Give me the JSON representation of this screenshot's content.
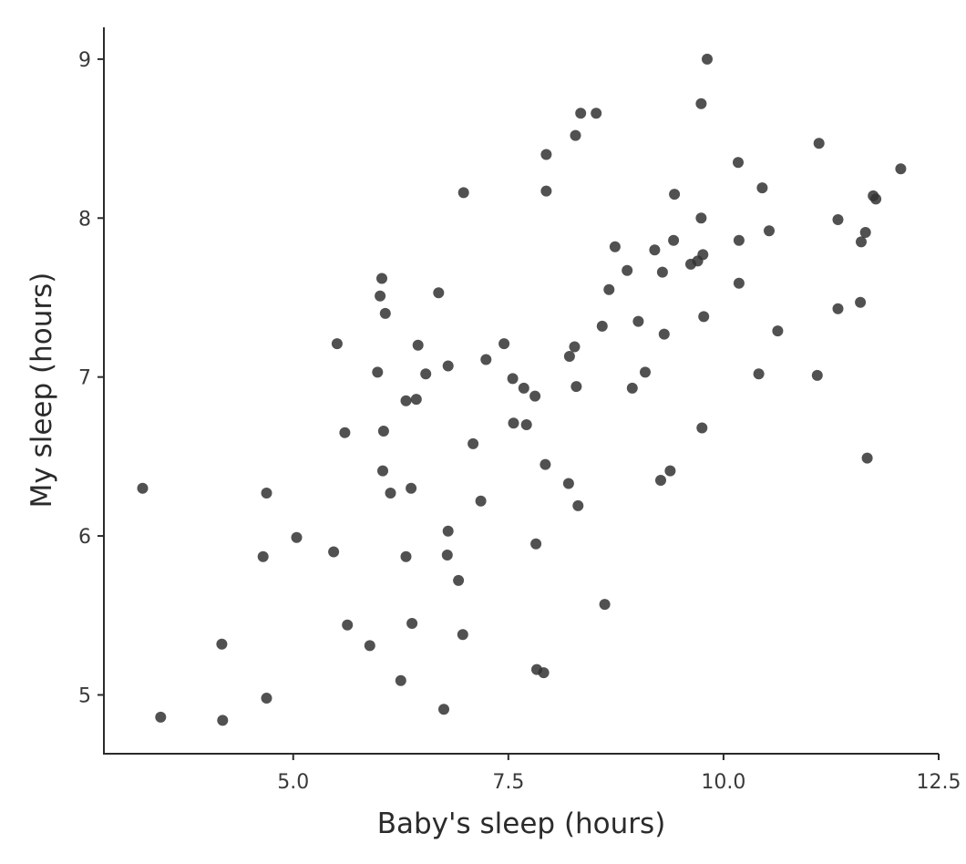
{
  "chart_data": {
    "type": "scatter",
    "title": "",
    "xlabel": "Baby's sleep (hours)",
    "ylabel": "My sleep (hours)",
    "xlim": [
      2.8,
      12.5
    ],
    "ylim": [
      4.63,
      9.2
    ],
    "xticks": [
      5.0,
      7.5,
      10.0,
      12.5
    ],
    "xtick_labels": [
      "5.0",
      "7.5",
      "10.0",
      "12.5"
    ],
    "yticks": [
      5,
      6,
      7,
      8,
      9
    ],
    "ytick_labels": [
      "5",
      "6",
      "7",
      "8",
      "9"
    ],
    "grid": false,
    "point_color": "#333333",
    "points": [
      [
        3.25,
        6.3
      ],
      [
        3.46,
        4.86
      ],
      [
        4.17,
        5.32
      ],
      [
        4.18,
        4.84
      ],
      [
        4.65,
        5.87
      ],
      [
        4.69,
        6.27
      ],
      [
        4.69,
        4.98
      ],
      [
        5.04,
        5.99
      ],
      [
        5.47,
        5.9
      ],
      [
        5.51,
        7.21
      ],
      [
        5.6,
        6.65
      ],
      [
        5.63,
        5.44
      ],
      [
        5.89,
        5.31
      ],
      [
        5.98,
        7.03
      ],
      [
        6.01,
        7.51
      ],
      [
        6.03,
        7.62
      ],
      [
        6.04,
        6.41
      ],
      [
        6.05,
        6.66
      ],
      [
        6.07,
        7.4
      ],
      [
        6.13,
        6.27
      ],
      [
        6.25,
        5.09
      ],
      [
        6.31,
        6.85
      ],
      [
        6.31,
        5.87
      ],
      [
        6.37,
        6.3
      ],
      [
        6.38,
        5.45
      ],
      [
        6.43,
        6.86
      ],
      [
        6.45,
        7.2
      ],
      [
        6.54,
        7.02
      ],
      [
        6.69,
        7.53
      ],
      [
        6.75,
        4.91
      ],
      [
        6.79,
        5.88
      ],
      [
        6.8,
        6.03
      ],
      [
        6.8,
        7.07
      ],
      [
        6.92,
        5.72
      ],
      [
        6.97,
        5.38
      ],
      [
        6.98,
        8.16
      ],
      [
        7.09,
        6.58
      ],
      [
        7.18,
        6.22
      ],
      [
        7.24,
        7.11
      ],
      [
        7.45,
        7.21
      ],
      [
        7.55,
        6.99
      ],
      [
        7.56,
        6.71
      ],
      [
        7.68,
        6.93
      ],
      [
        7.71,
        6.7
      ],
      [
        7.81,
        6.88
      ],
      [
        7.82,
        5.95
      ],
      [
        7.83,
        5.16
      ],
      [
        7.91,
        5.14
      ],
      [
        7.93,
        6.45
      ],
      [
        7.94,
        8.4
      ],
      [
        7.94,
        8.17
      ],
      [
        8.2,
        6.33
      ],
      [
        8.21,
        7.13
      ],
      [
        8.27,
        7.19
      ],
      [
        8.28,
        8.52
      ],
      [
        8.29,
        6.94
      ],
      [
        8.31,
        6.19
      ],
      [
        8.34,
        8.66
      ],
      [
        8.52,
        8.66
      ],
      [
        8.59,
        7.32
      ],
      [
        8.62,
        5.57
      ],
      [
        8.67,
        7.55
      ],
      [
        8.74,
        7.82
      ],
      [
        8.88,
        7.67
      ],
      [
        8.94,
        6.93
      ],
      [
        9.01,
        7.35
      ],
      [
        9.09,
        7.03
      ],
      [
        9.2,
        7.8
      ],
      [
        9.27,
        6.35
      ],
      [
        9.29,
        7.66
      ],
      [
        9.31,
        7.27
      ],
      [
        9.38,
        6.41
      ],
      [
        9.42,
        7.86
      ],
      [
        9.43,
        8.15
      ],
      [
        9.62,
        7.71
      ],
      [
        9.7,
        7.73
      ],
      [
        9.74,
        8.0
      ],
      [
        9.74,
        8.72
      ],
      [
        9.75,
        6.68
      ],
      [
        9.76,
        7.77
      ],
      [
        9.77,
        7.38
      ],
      [
        9.81,
        9.0
      ],
      [
        10.17,
        8.35
      ],
      [
        10.18,
        7.86
      ],
      [
        10.18,
        7.59
      ],
      [
        10.41,
        7.02
      ],
      [
        10.45,
        8.19
      ],
      [
        10.53,
        7.92
      ],
      [
        10.63,
        7.29
      ],
      [
        11.09,
        7.01
      ],
      [
        11.11,
        8.47
      ],
      [
        11.33,
        7.99
      ],
      [
        11.33,
        7.43
      ],
      [
        11.59,
        7.47
      ],
      [
        11.6,
        7.85
      ],
      [
        11.65,
        7.91
      ],
      [
        11.67,
        6.49
      ],
      [
        11.74,
        8.14
      ],
      [
        11.77,
        8.12
      ],
      [
        12.06,
        8.31
      ]
    ]
  }
}
